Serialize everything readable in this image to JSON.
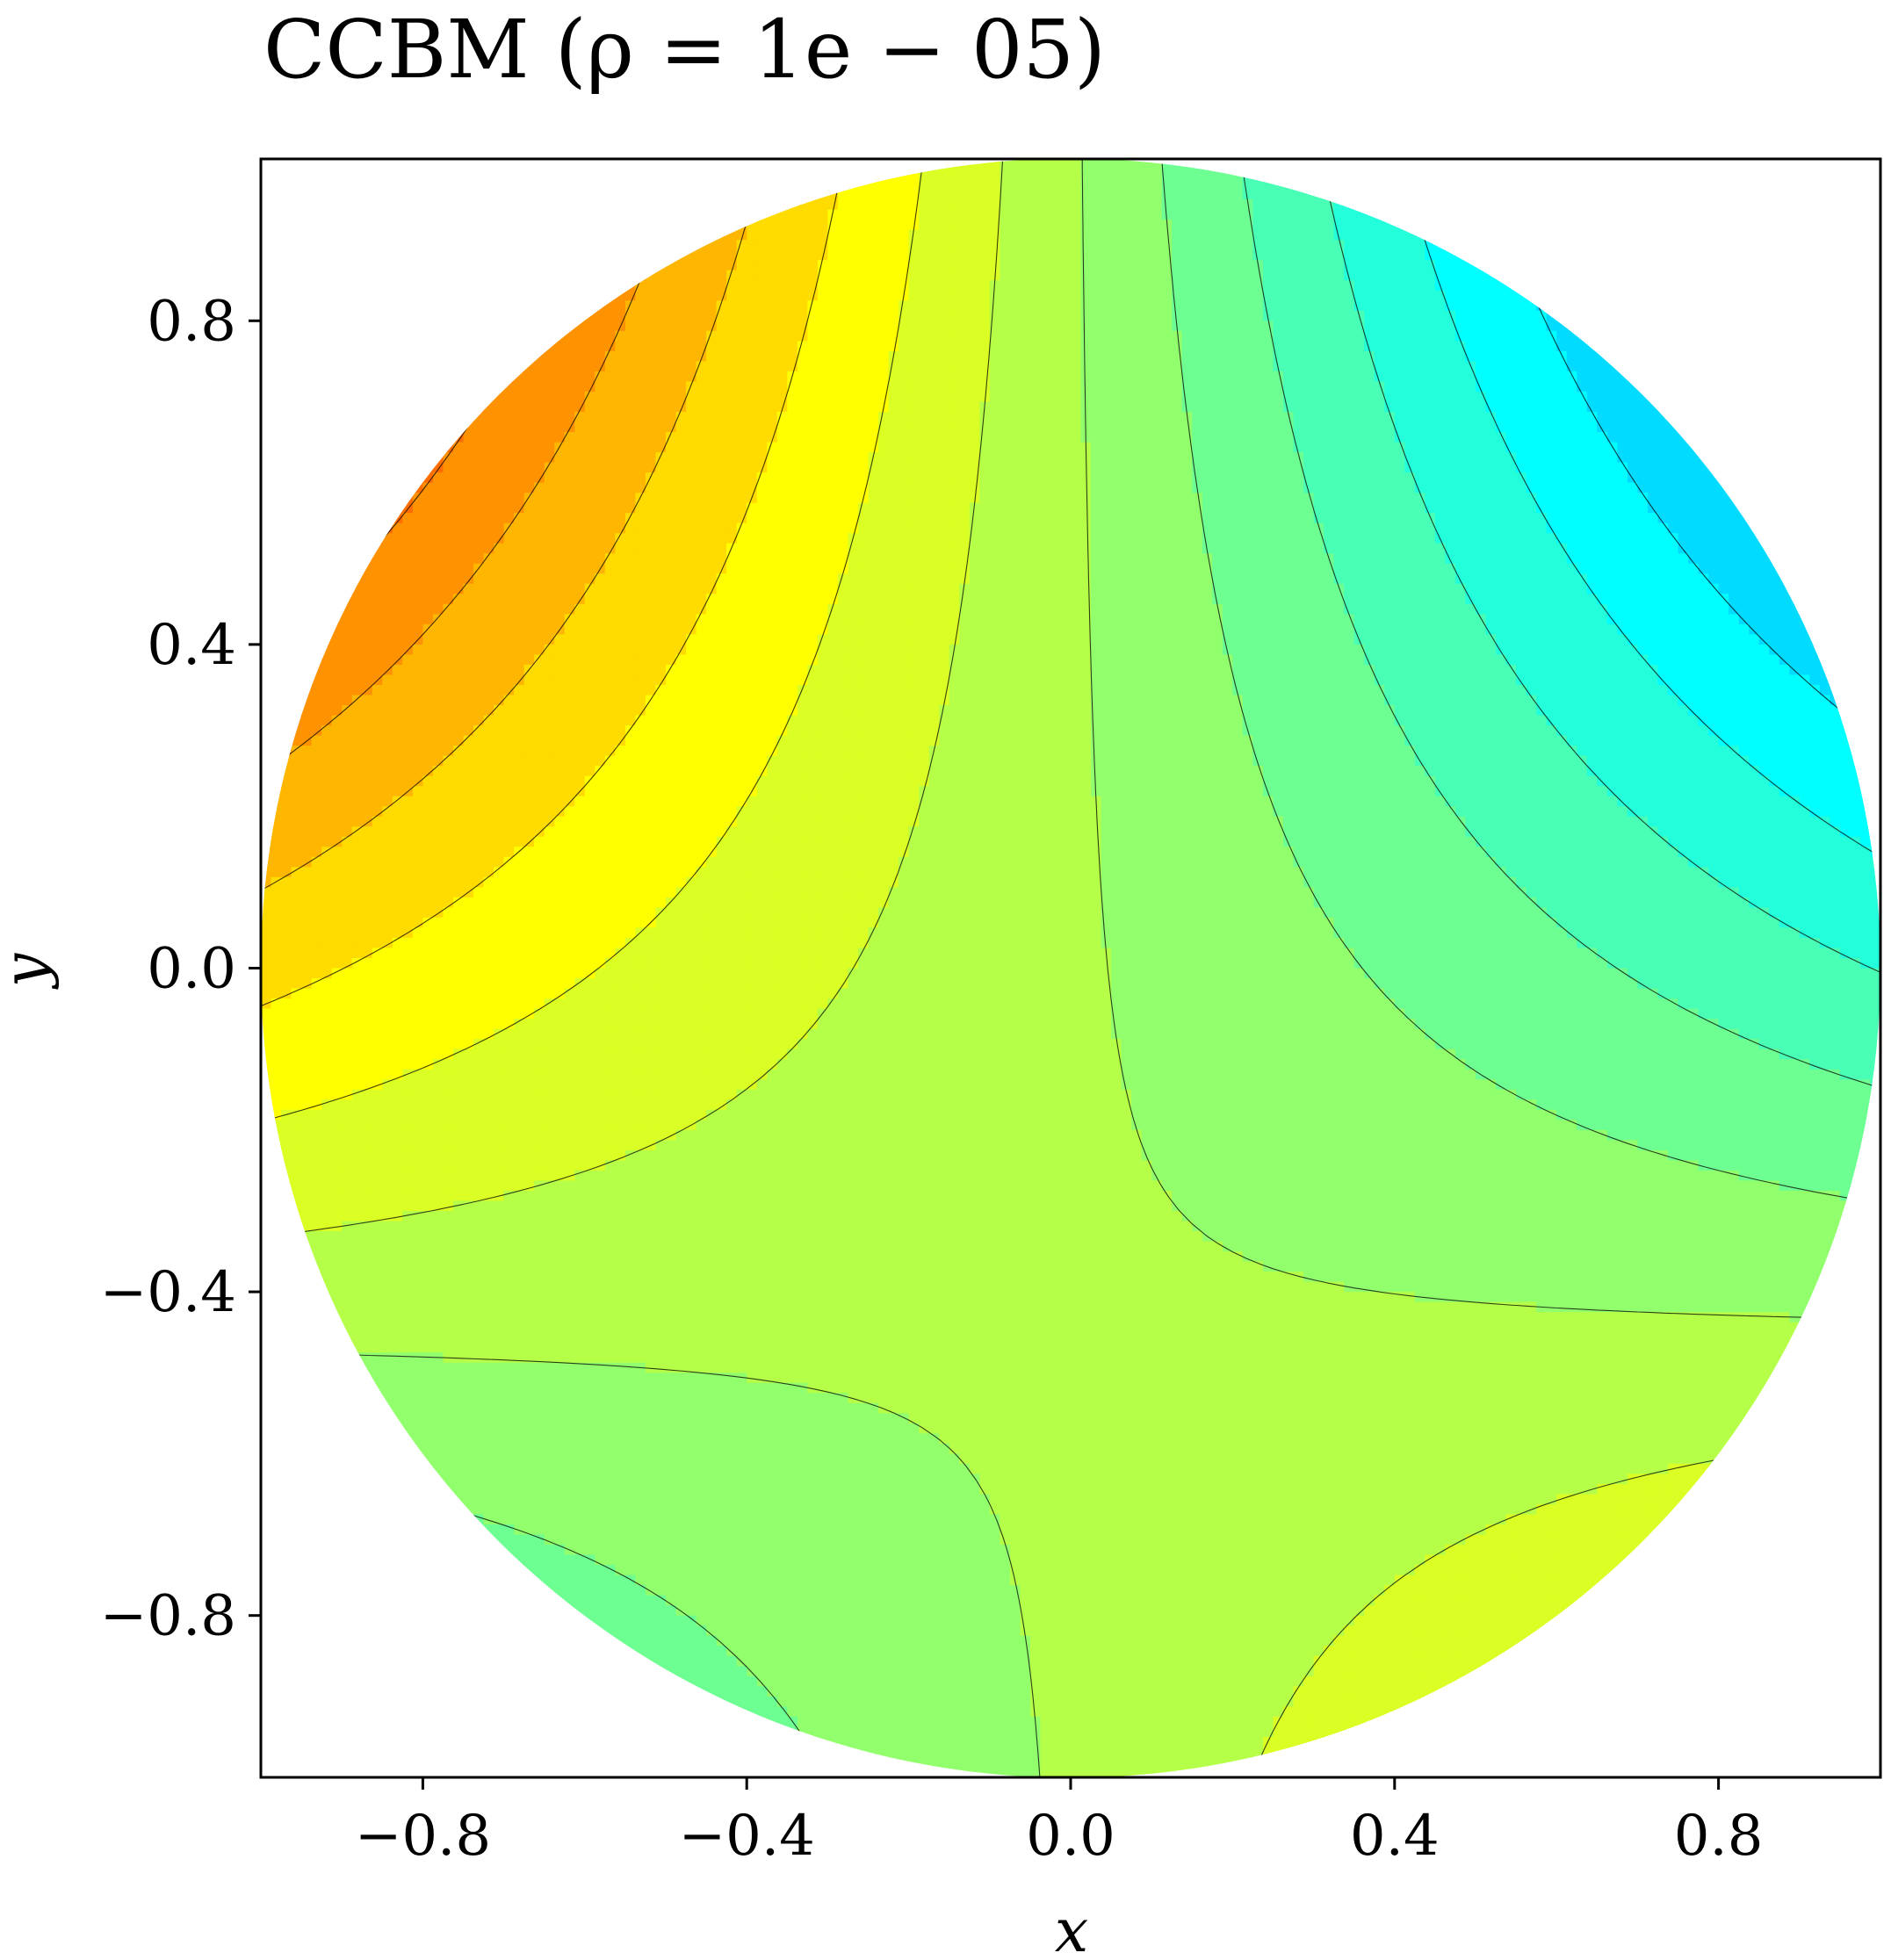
{
  "chart_data": {
    "type": "heatmap",
    "subtype": "filled-contour",
    "title": "CCBM (ρ = 1e − 05)",
    "xlabel": "x",
    "ylabel": "y",
    "xlim": [
      -1.0,
      1.0
    ],
    "ylim": [
      -1.0,
      1.0
    ],
    "domain": "unit disk",
    "xticks": [
      -0.8,
      -0.4,
      0.0,
      0.4,
      0.8
    ],
    "xtick_labels": [
      "−0.8",
      "−0.4",
      "0.0",
      "0.4",
      "0.8"
    ],
    "yticks": [
      -0.8,
      -0.4,
      0.0,
      0.4,
      0.8
    ],
    "ytick_labels": [
      "−0.8",
      "−0.4",
      "0.0",
      "0.4",
      "0.8"
    ],
    "colormap": "jet",
    "field_approximation": "f(x,y) = 0.09 - 0.55*x*y - 0.25*x",
    "color_range": [
      -1.1,
      1.1
    ],
    "contour_levels": 28,
    "extrema": [
      {
        "kind": "max",
        "x": -0.69,
        "y": 0.62
      },
      {
        "kind": "max",
        "x": 0.68,
        "y": -0.72
      },
      {
        "kind": "min",
        "x": 0.72,
        "y": 0.62
      },
      {
        "kind": "min",
        "x": -0.55,
        "y": -0.8
      }
    ],
    "grid": false,
    "legend": "none",
    "colors": {
      "frame": "#000000",
      "contour_line": "#000000"
    }
  }
}
